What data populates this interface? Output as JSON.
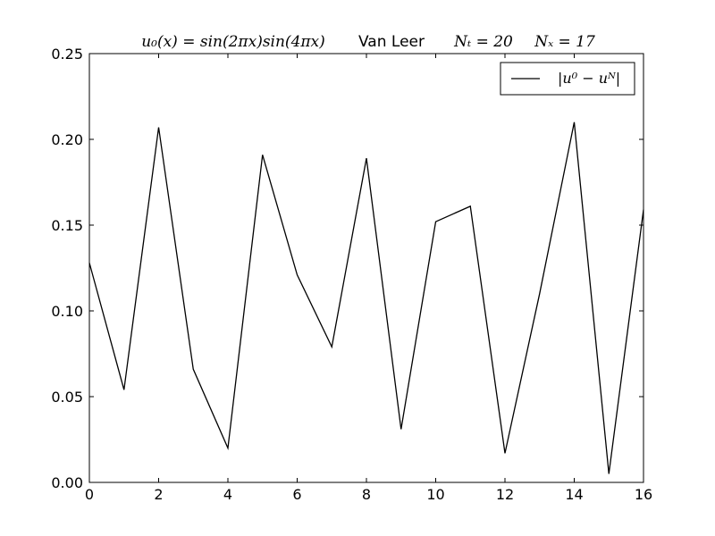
{
  "chart_data": {
    "type": "line",
    "title": {
      "formula": "u₀(x) = sin(2πx)sin(4πx)",
      "method": "Van Leer",
      "nt": "Nₜ = 20",
      "nx": "Nₓ = 17"
    },
    "xlabel": "",
    "ylabel": "",
    "xlim": [
      0,
      16
    ],
    "ylim": [
      0,
      0.25
    ],
    "x_ticks": [
      0,
      2,
      4,
      6,
      8,
      10,
      12,
      14,
      16
    ],
    "x_tick_labels": [
      "0",
      "2",
      "4",
      "6",
      "8",
      "10",
      "12",
      "14",
      "16"
    ],
    "y_ticks": [
      0,
      0.05,
      0.1,
      0.15,
      0.2,
      0.25
    ],
    "y_tick_labels": [
      "0.00",
      "0.05",
      "0.10",
      "0.15",
      "0.20",
      "0.25"
    ],
    "grid": false,
    "legend_position": "top-right",
    "series": [
      {
        "name": "|u⁰ − uᴺ|",
        "color": "#000000",
        "x": [
          0,
          1,
          2,
          3,
          4,
          5,
          6,
          7,
          8,
          9,
          10,
          11,
          12,
          13,
          14,
          15,
          16
        ],
        "y": [
          0.128,
          0.054,
          0.207,
          0.066,
          0.02,
          0.191,
          0.121,
          0.079,
          0.189,
          0.031,
          0.152,
          0.161,
          0.017,
          0.11,
          0.21,
          0.005,
          0.159
        ]
      }
    ]
  }
}
